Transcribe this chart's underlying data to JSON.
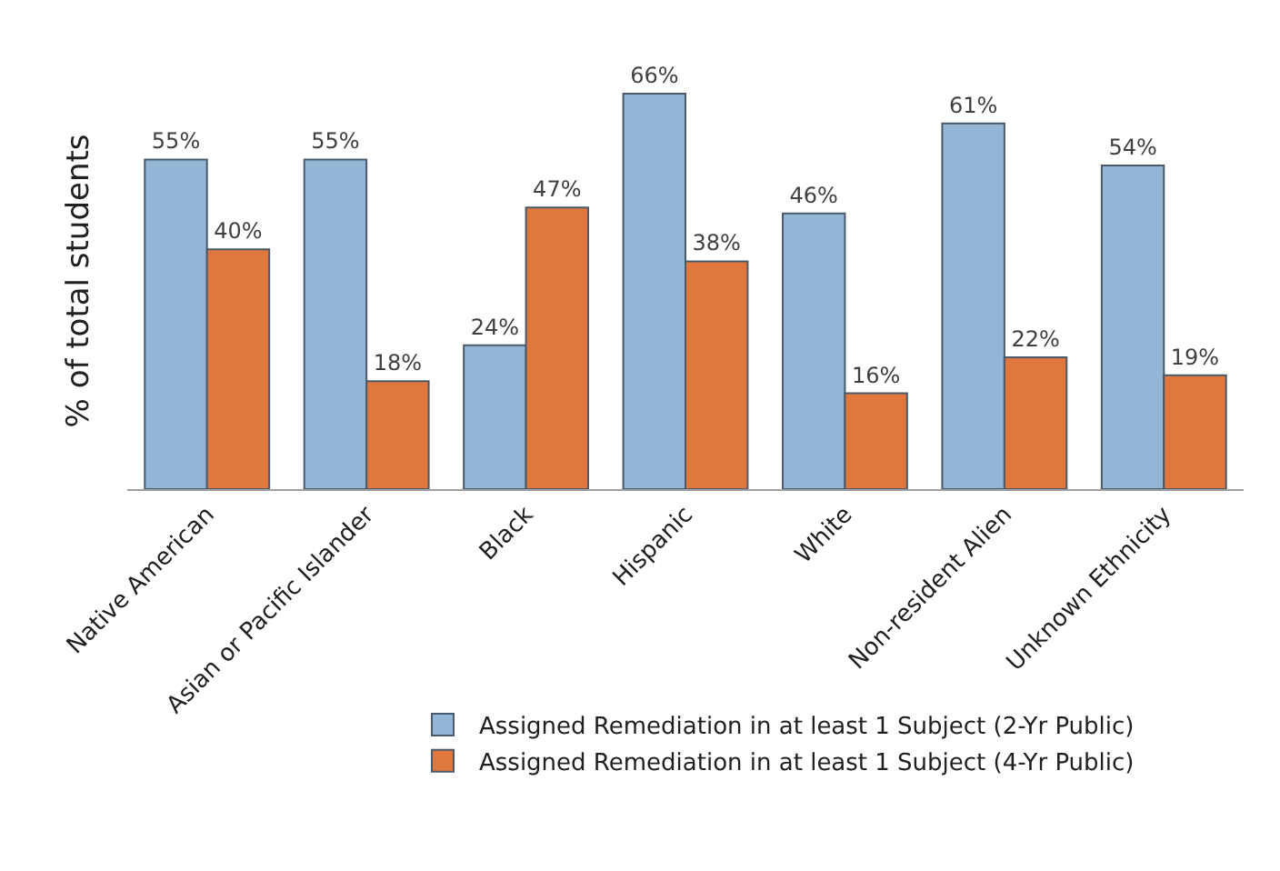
{
  "chart_data": {
    "type": "bar",
    "ylabel": "% of total students",
    "categories": [
      "Native American",
      "Asian or Pacific Islander",
      "Black",
      "Hispanic",
      "White",
      "Non-resident Alien",
      "Unknown Ethnicity"
    ],
    "series": [
      {
        "name": "Assigned Remediation in at least 1 Subject (2-Yr Public)",
        "color": "#94b6d6",
        "values": [
          55,
          55,
          24,
          66,
          46,
          61,
          54
        ],
        "value_labels": [
          "55%",
          "55%",
          "24%",
          "66%",
          "46%",
          "61%",
          "54%"
        ]
      },
      {
        "name": "Assigned Remediation in at least 1 Subject (4-Yr Public)",
        "color": "#e0783e",
        "values": [
          40,
          18,
          47,
          38,
          16,
          22,
          19
        ],
        "value_labels": [
          "40%",
          "18%",
          "47%",
          "38%",
          "16%",
          "22%",
          "19%"
        ]
      }
    ],
    "legend": "bottom"
  }
}
